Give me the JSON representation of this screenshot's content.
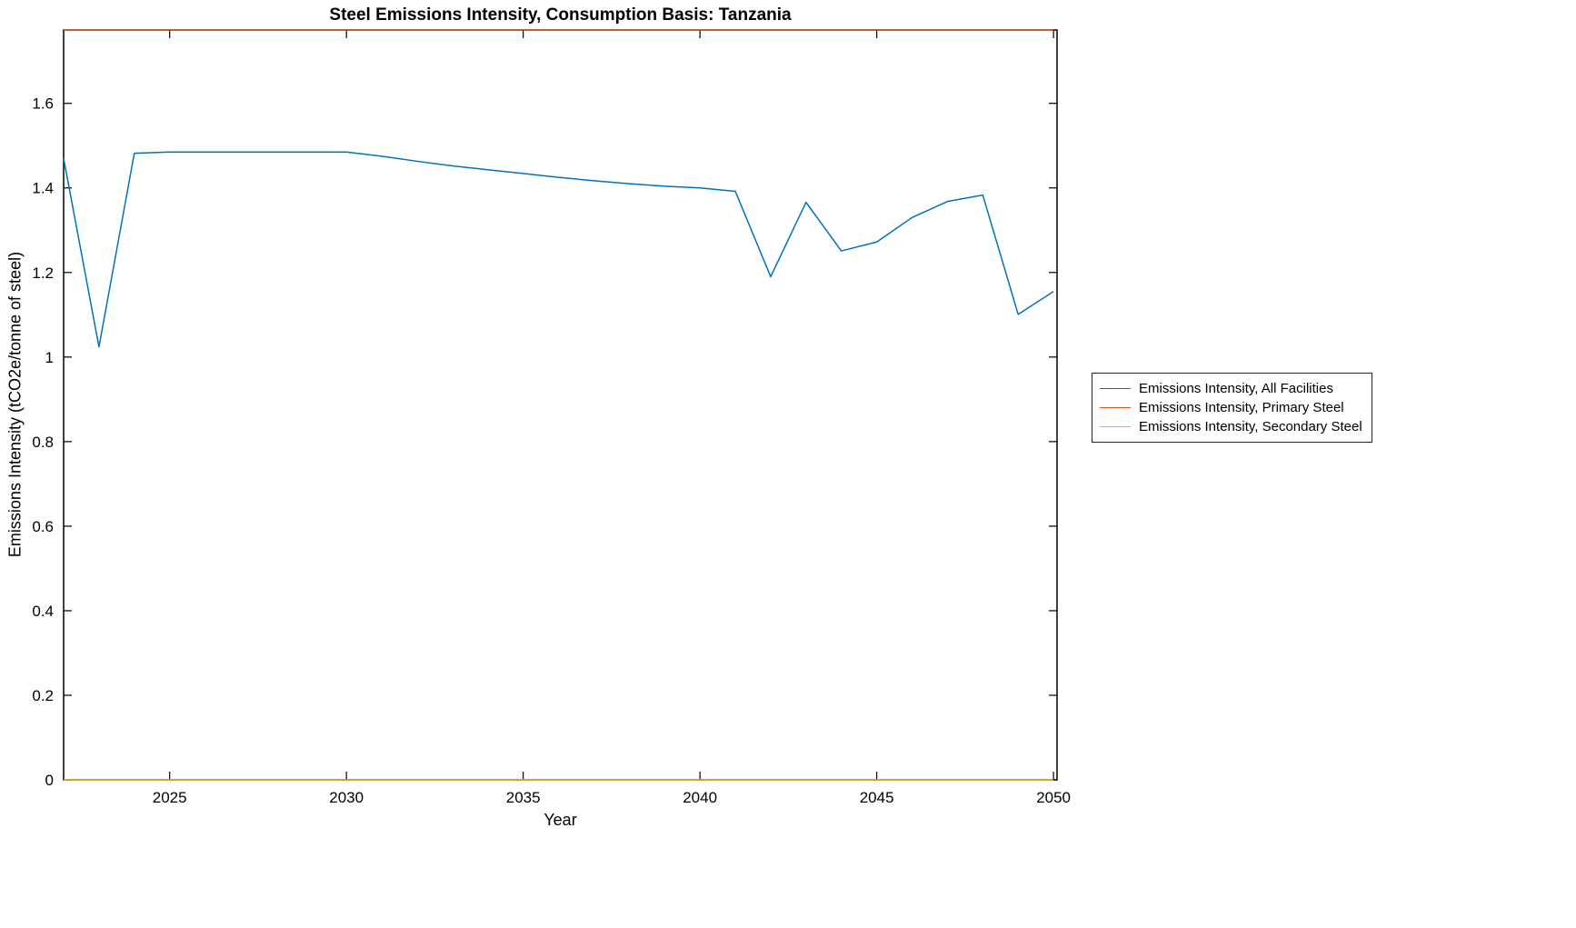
{
  "figure": {
    "background": "#ffffff",
    "axis_color": "#000000"
  },
  "chart_data": {
    "type": "line",
    "title": "Steel Emissions Intensity, Consumption Basis: Tanzania",
    "xlabel": "Year",
    "ylabel": "Emissions Intensity (tCO2e/tonne of steel)",
    "xlim": [
      2022,
      2050.1
    ],
    "ylim": [
      0,
      1.7735
    ],
    "grid": false,
    "legend_position": "right-outside",
    "x_ticks": [
      2025,
      2030,
      2035,
      2040,
      2045,
      2050
    ],
    "x_tick_labels": [
      "2025",
      "2030",
      "2035",
      "2040",
      "2045",
      "2050"
    ],
    "y_ticks": [
      0,
      0.2,
      0.4,
      0.6,
      0.8,
      1,
      1.2,
      1.4,
      1.6
    ],
    "y_tick_labels": [
      "0",
      "0.2",
      "0.4",
      "0.6",
      "0.8",
      "1",
      "1.2",
      "1.4",
      "1.6"
    ],
    "x": [
      2022,
      2023,
      2024,
      2025,
      2026,
      2027,
      2028,
      2029,
      2030,
      2031,
      2032,
      2033,
      2034,
      2035,
      2036,
      2037,
      2038,
      2039,
      2040,
      2041,
      2042,
      2043,
      2044,
      2045,
      2046,
      2047,
      2048,
      2049,
      2050
    ],
    "series": [
      {
        "name": "Emissions Intensity, All Facilities",
        "color": "#0072BD",
        "values": [
          1.47,
          1.024,
          1.482,
          1.485,
          1.485,
          1.485,
          1.485,
          1.485,
          1.485,
          1.475,
          1.463,
          1.452,
          1.443,
          1.434,
          1.425,
          1.417,
          1.41,
          1.404,
          1.4,
          1.392,
          1.19,
          1.366,
          1.251,
          1.272,
          1.33,
          1.368,
          1.383,
          1.101,
          1.155
        ]
      },
      {
        "name": "Emissions Intensity, Primary Steel",
        "color": "#D95319",
        "values": [
          1.7735,
          1.7735,
          1.7735,
          1.7735,
          1.7735,
          1.7735,
          1.7735,
          1.7735,
          1.7735,
          1.7735,
          1.7735,
          1.7735,
          1.7735,
          1.7735,
          1.7735,
          1.7735,
          1.7735,
          1.7735,
          1.7735,
          1.7735,
          1.7735,
          1.7735,
          1.7735,
          1.7735,
          1.7735,
          1.7735,
          1.7735,
          1.7735,
          1.7735
        ]
      },
      {
        "name": "Emissions Intensity, Secondary Steel",
        "color": "#EDB120",
        "values": [
          0,
          0,
          0,
          0,
          0,
          0,
          0,
          0,
          0,
          0,
          0,
          0,
          0,
          0,
          0,
          0,
          0,
          0,
          0,
          0,
          0,
          0,
          0,
          0,
          0,
          0,
          0,
          0,
          0
        ]
      }
    ]
  }
}
